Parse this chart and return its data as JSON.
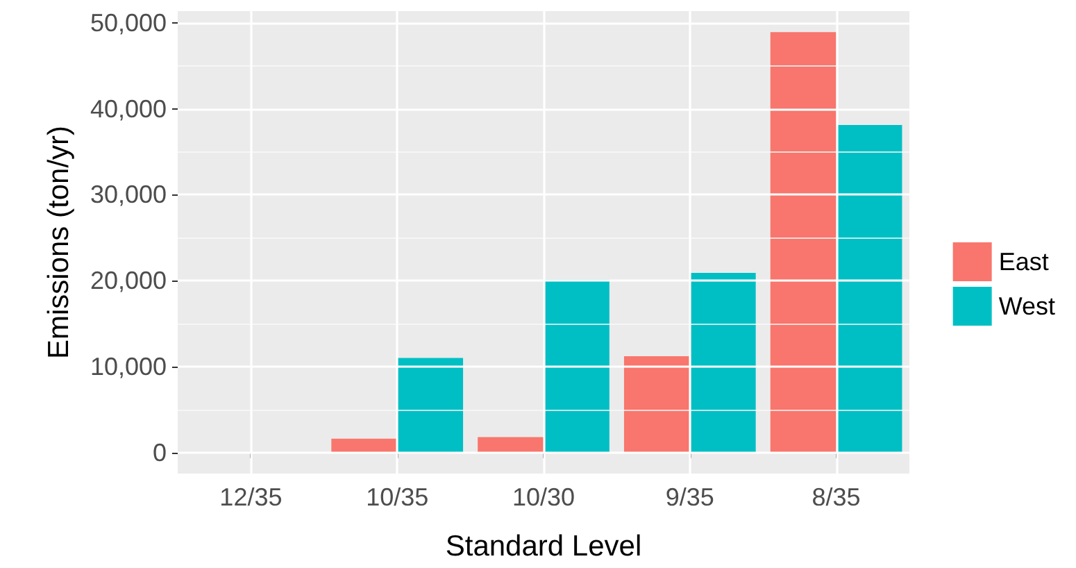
{
  "chart_data": {
    "type": "bar",
    "xlabel": "Standard Level",
    "ylabel": "Emissions (ton/yr)",
    "categories": [
      "12/35",
      "10/35",
      "10/30",
      "9/35",
      "8/35"
    ],
    "series": [
      {
        "name": "East",
        "color": "#f8766d",
        "values": [
          0,
          1600,
          1800,
          11200,
          48900
        ]
      },
      {
        "name": "West",
        "color": "#00bfc4",
        "values": [
          0,
          11000,
          20100,
          20900,
          38100
        ]
      }
    ],
    "ylim": [
      -2450,
      51350
    ],
    "yticks": [
      {
        "value": 0,
        "label": "0"
      },
      {
        "value": 10000,
        "label": "10,000"
      },
      {
        "value": 20000,
        "label": "20,000"
      },
      {
        "value": 30000,
        "label": "30,000"
      },
      {
        "value": 40000,
        "label": "40,000"
      },
      {
        "value": 50000,
        "label": "50,000"
      }
    ],
    "grid": true,
    "legend": "right"
  }
}
